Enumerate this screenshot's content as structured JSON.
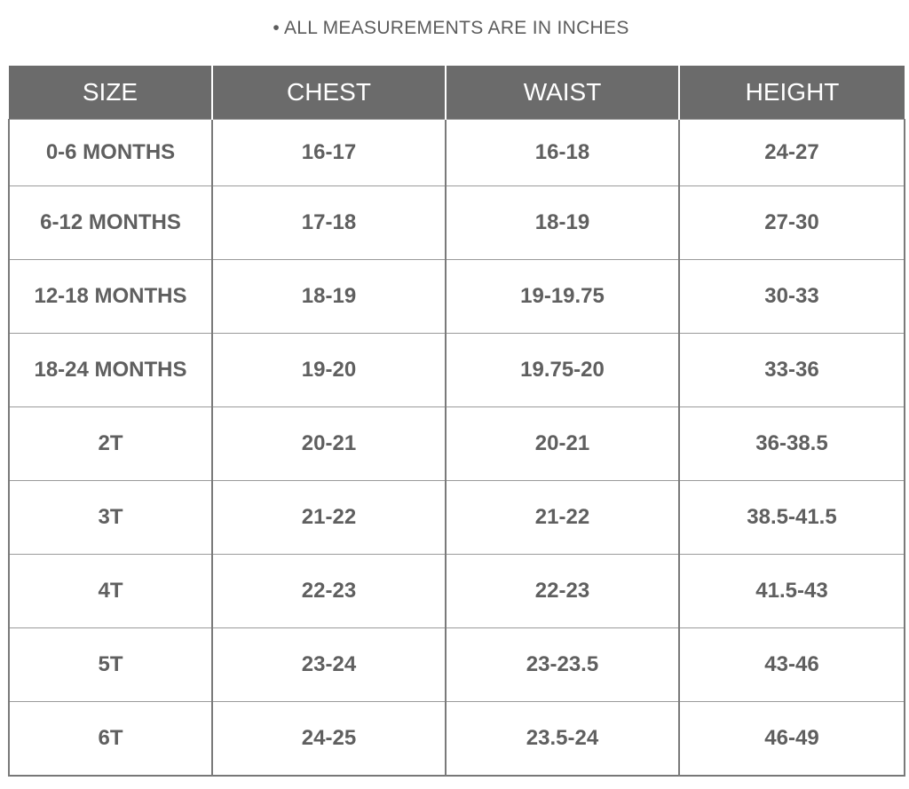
{
  "note": "• ALL MEASUREMENTS ARE IN INCHES",
  "headers": [
    "SIZE",
    "CHEST",
    "WAIST",
    "HEIGHT"
  ],
  "rows": [
    [
      "0-6 MONTHS",
      "16-17",
      "16-18",
      "24-27"
    ],
    [
      "6-12 MONTHS",
      "17-18",
      "18-19",
      "27-30"
    ],
    [
      "12-18 MONTHS",
      "18-19",
      "19-19.75",
      "30-33"
    ],
    [
      "18-24 MONTHS",
      "19-20",
      "19.75-20",
      "33-36"
    ],
    [
      "2T",
      "20-21",
      "20-21",
      "36-38.5"
    ],
    [
      "3T",
      "21-22",
      "21-22",
      "38.5-41.5"
    ],
    [
      "4T",
      "22-23",
      "22-23",
      "41.5-43"
    ],
    [
      "5T",
      "23-24",
      "23-23.5",
      "43-46"
    ],
    [
      "6T",
      "24-25",
      "23.5-24",
      "46-49"
    ]
  ],
  "colors": {
    "header_bg": "#6b6b6b",
    "header_text": "#ffffff",
    "body_text": "#5f5f5f",
    "grid": "#7a7a7a"
  }
}
